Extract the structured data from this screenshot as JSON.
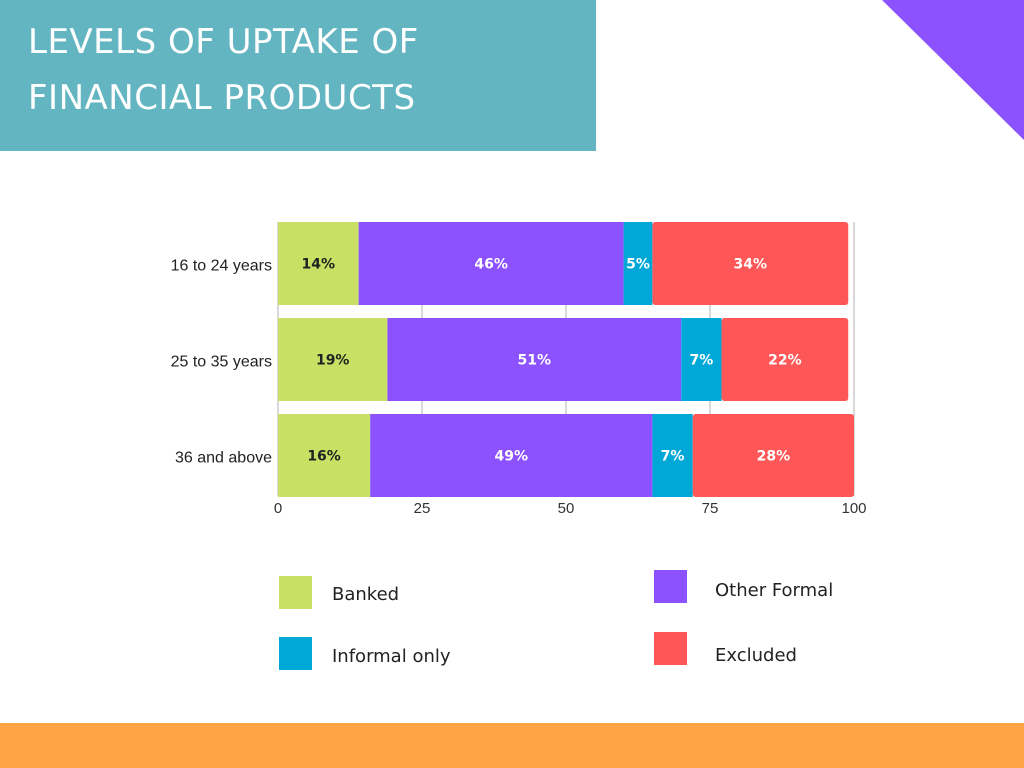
{
  "title_lines": [
    "LEVELS OF UPTAKE OF",
    "FINANCIAL PRODUCTS"
  ],
  "colors": {
    "title_bg": "#63b6c1",
    "corner": "#8c52ff",
    "bottom_bar": "#ffa545",
    "banked": "#c8e063",
    "other_formal": "#8c52ff",
    "informal_only": "#00a8d8",
    "excluded": "#ff5757"
  },
  "chart_data": {
    "type": "bar",
    "orientation": "horizontal",
    "stacked": true,
    "categories": [
      "16 to 24 years",
      "25 to 35 years",
      "36 and above"
    ],
    "series": [
      {
        "name": "Banked",
        "values": [
          14,
          19,
          16
        ],
        "labels": [
          "14%",
          "19%",
          "16%"
        ],
        "color": "#c8e063"
      },
      {
        "name": "Other Formal",
        "values": [
          46,
          51,
          49
        ],
        "labels": [
          "46%",
          "51%",
          "49%"
        ],
        "color": "#8c52ff"
      },
      {
        "name": "Informal only",
        "values": [
          5,
          7,
          7
        ],
        "labels": [
          "5%",
          "7%",
          "7%"
        ],
        "color": "#00a8d8"
      },
      {
        "name": "Excluded",
        "values": [
          34,
          22,
          28
        ],
        "labels": [
          "34%",
          "22%",
          "28%"
        ],
        "color": "#ff5757"
      }
    ],
    "xlim": [
      0,
      100
    ],
    "xticks": [
      "0",
      "25",
      "50",
      "75",
      "100"
    ],
    "grid": true,
    "legend_position": "bottom"
  }
}
